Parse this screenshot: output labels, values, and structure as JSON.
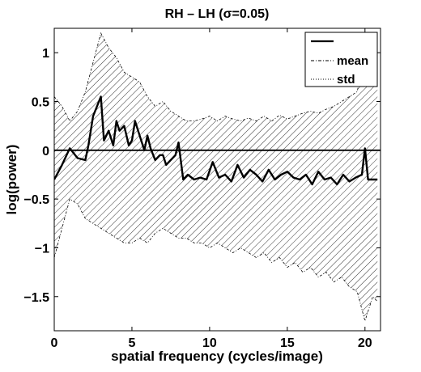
{
  "chart_data": {
    "type": "line",
    "title": "RH – LH (σ=0.05)",
    "xlabel": "spatial frequency (cycles/image)",
    "ylabel": "log(power)",
    "xlim": [
      0,
      21
    ],
    "ylim": [
      -1.85,
      1.25
    ],
    "xticks": [
      0,
      5,
      10,
      15,
      20
    ],
    "yticks": [
      -1.5,
      -1,
      -0.5,
      0,
      0.5,
      1
    ],
    "xtick_labels": [
      "0",
      "5",
      "10",
      "15",
      "20"
    ],
    "ytick_labels": [
      "−1.5",
      "−1",
      "−0.5",
      "0",
      "0.5",
      "1"
    ],
    "reference_line_y": 0,
    "legend_placement": "top-right",
    "legend": [
      "",
      "mean",
      "std"
    ],
    "grid": false,
    "series": [
      {
        "name": "mean",
        "x": [
          0,
          0.5,
          1,
          1.5,
          2,
          2.2,
          2.5,
          3,
          3.2,
          3.5,
          3.8,
          4,
          4.2,
          4.5,
          4.8,
          5,
          5.2,
          5.5,
          5.8,
          6,
          6.2,
          6.5,
          6.8,
          7,
          7.2,
          7.5,
          7.8,
          8,
          8.3,
          8.6,
          9,
          9.4,
          9.8,
          10.2,
          10.6,
          11,
          11.4,
          11.8,
          12.2,
          12.6,
          13,
          13.4,
          13.8,
          14.2,
          14.6,
          15,
          15.4,
          15.8,
          16.2,
          16.6,
          17,
          17.4,
          17.8,
          18.2,
          18.6,
          19,
          19.4,
          19.8,
          20,
          20.2,
          20.4,
          20.8
        ],
        "values": [
          -0.3,
          -0.15,
          0.02,
          -0.08,
          -0.1,
          0.05,
          0.35,
          0.55,
          0.1,
          0.2,
          0.05,
          0.3,
          0.2,
          0.25,
          0.05,
          0.1,
          0.3,
          0.15,
          0.0,
          0.15,
          0.02,
          -0.1,
          -0.05,
          -0.05,
          -0.15,
          -0.1,
          -0.05,
          0.08,
          -0.3,
          -0.25,
          -0.3,
          -0.28,
          -0.3,
          -0.12,
          -0.28,
          -0.25,
          -0.32,
          -0.15,
          -0.28,
          -0.2,
          -0.25,
          -0.32,
          -0.2,
          -0.3,
          -0.25,
          -0.22,
          -0.28,
          -0.3,
          -0.25,
          -0.35,
          -0.22,
          -0.3,
          -0.28,
          -0.35,
          -0.25,
          -0.32,
          -0.28,
          -0.25,
          0.02,
          -0.3,
          -0.3,
          -0.3
        ]
      },
      {
        "name": "std",
        "x": [
          0,
          0.5,
          1,
          1.5,
          2,
          2.5,
          3,
          3.5,
          4,
          4.5,
          5,
          5.5,
          6,
          6.5,
          7,
          7.5,
          8,
          8.5,
          9,
          9.5,
          10,
          10.5,
          11,
          11.5,
          12,
          12.5,
          13,
          13.5,
          14,
          14.5,
          15,
          15.5,
          16,
          16.5,
          17,
          17.5,
          18,
          18.5,
          19,
          19.5,
          20,
          20.5,
          20.8
        ],
        "upper": [
          0.55,
          0.45,
          0.3,
          0.4,
          0.6,
          0.9,
          1.2,
          1.05,
          0.95,
          0.8,
          0.75,
          0.7,
          0.55,
          0.45,
          0.5,
          0.4,
          0.35,
          0.3,
          0.3,
          0.32,
          0.35,
          0.3,
          0.35,
          0.32,
          0.3,
          0.33,
          0.3,
          0.35,
          0.3,
          0.36,
          0.32,
          0.35,
          0.38,
          0.4,
          0.38,
          0.42,
          0.45,
          0.5,
          0.55,
          0.6,
          1.0,
          0.95,
          0.95
        ],
        "lower": [
          -1.1,
          -0.8,
          -0.5,
          -0.55,
          -0.7,
          -0.75,
          -0.8,
          -0.85,
          -0.9,
          -0.95,
          -0.95,
          -0.9,
          -0.95,
          -0.85,
          -0.8,
          -0.85,
          -0.9,
          -0.9,
          -0.95,
          -0.95,
          -1.0,
          -0.95,
          -1.0,
          -1.05,
          -1.0,
          -1.05,
          -1.1,
          -1.05,
          -1.15,
          -1.1,
          -1.2,
          -1.15,
          -1.25,
          -1.2,
          -1.3,
          -1.25,
          -1.35,
          -1.3,
          -1.4,
          -1.45,
          -1.75,
          -1.5,
          -1.55
        ]
      }
    ]
  }
}
